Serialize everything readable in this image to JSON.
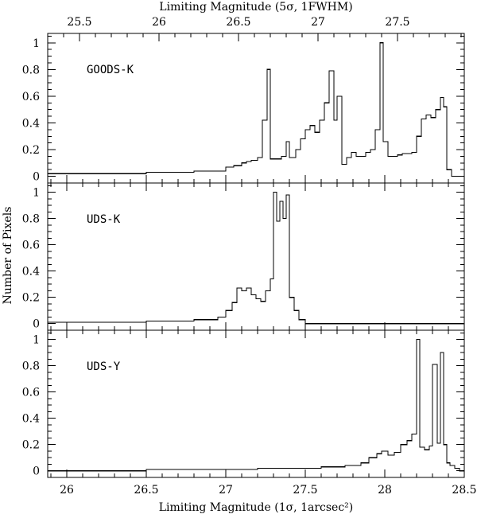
{
  "chart_data": {
    "type": "line",
    "subtype": "step-histogram",
    "top_axis": {
      "label": "Limiting Magnitude (5σ, 1FWHM)",
      "tick_labels": [
        "25.5",
        "26",
        "26.5",
        "27",
        "27.5"
      ],
      "tick_values": [
        25.5,
        26,
        26.5,
        27,
        27.5
      ],
      "range": [
        25.3,
        27.92
      ]
    },
    "bottom_axis": {
      "label": "Limiting Magnitude (1σ, 1arcsec²)",
      "tick_labels": [
        "26",
        "26.5",
        "27",
        "27.5",
        "28",
        "28.5"
      ],
      "tick_values": [
        26,
        26.5,
        27,
        27.5,
        28,
        28.5
      ],
      "range": [
        25.88,
        28.5
      ]
    },
    "y_axis": {
      "label": "Number of Pixels",
      "tick_labels": [
        "0",
        "0.2",
        "0.4",
        "0.6",
        "0.8",
        "1"
      ],
      "tick_values": [
        0,
        0.2,
        0.4,
        0.6,
        0.8,
        1
      ],
      "range": [
        -0.05,
        1.07
      ]
    },
    "panels": [
      {
        "label": "GOODS-K",
        "x": [
          25.88,
          26.2,
          26.5,
          26.8,
          27.0,
          27.05,
          27.1,
          27.13,
          27.16,
          27.2,
          27.23,
          27.26,
          27.28,
          27.31,
          27.35,
          27.38,
          27.4,
          27.44,
          27.47,
          27.5,
          27.53,
          27.56,
          27.59,
          27.62,
          27.65,
          27.68,
          27.7,
          27.73,
          27.76,
          27.79,
          27.82,
          27.85,
          27.88,
          27.91,
          27.94,
          27.97,
          27.99,
          28.02,
          28.05,
          28.08,
          28.11,
          28.14,
          28.17,
          28.2,
          28.23,
          28.26,
          28.29,
          28.32,
          28.35,
          28.37,
          28.39,
          28.42,
          28.5
        ],
        "y": [
          0.02,
          0.02,
          0.03,
          0.04,
          0.07,
          0.08,
          0.1,
          0.11,
          0.12,
          0.14,
          0.42,
          0.8,
          0.13,
          0.13,
          0.15,
          0.26,
          0.14,
          0.2,
          0.28,
          0.35,
          0.38,
          0.33,
          0.42,
          0.55,
          0.79,
          0.42,
          0.6,
          0.09,
          0.14,
          0.18,
          0.15,
          0.15,
          0.18,
          0.2,
          0.35,
          1.0,
          0.26,
          0.15,
          0.15,
          0.16,
          0.17,
          0.17,
          0.18,
          0.3,
          0.43,
          0.46,
          0.44,
          0.5,
          0.59,
          0.52,
          0.05,
          0.0,
          0.0
        ]
      },
      {
        "label": "UDS-K",
        "x": [
          25.88,
          26.2,
          26.5,
          26.8,
          26.95,
          27.0,
          27.04,
          27.07,
          27.1,
          27.13,
          27.16,
          27.19,
          27.22,
          27.25,
          27.28,
          27.3,
          27.32,
          27.34,
          27.36,
          27.38,
          27.4,
          27.43,
          27.46,
          27.5,
          28.5
        ],
        "y": [
          0.01,
          0.01,
          0.02,
          0.03,
          0.05,
          0.1,
          0.16,
          0.27,
          0.25,
          0.27,
          0.22,
          0.19,
          0.17,
          0.25,
          0.34,
          1.0,
          0.78,
          0.93,
          0.8,
          0.98,
          0.2,
          0.1,
          0.03,
          0.0,
          0.0
        ]
      },
      {
        "label": "UDS-Y",
        "x": [
          25.88,
          26.2,
          26.5,
          26.8,
          27.0,
          27.2,
          27.4,
          27.6,
          27.75,
          27.85,
          27.9,
          27.95,
          27.98,
          28.02,
          28.06,
          28.1,
          28.14,
          28.17,
          28.2,
          28.22,
          28.25,
          28.28,
          28.3,
          28.33,
          28.35,
          28.37,
          28.39,
          28.41,
          28.44,
          28.47,
          28.5
        ],
        "y": [
          0.0,
          0.0,
          0.01,
          0.01,
          0.01,
          0.02,
          0.02,
          0.03,
          0.04,
          0.06,
          0.1,
          0.13,
          0.15,
          0.12,
          0.14,
          0.2,
          0.23,
          0.28,
          1.0,
          0.18,
          0.16,
          0.19,
          0.81,
          0.21,
          0.9,
          0.2,
          0.06,
          0.04,
          0.02,
          0.0,
          0.0
        ]
      }
    ]
  }
}
